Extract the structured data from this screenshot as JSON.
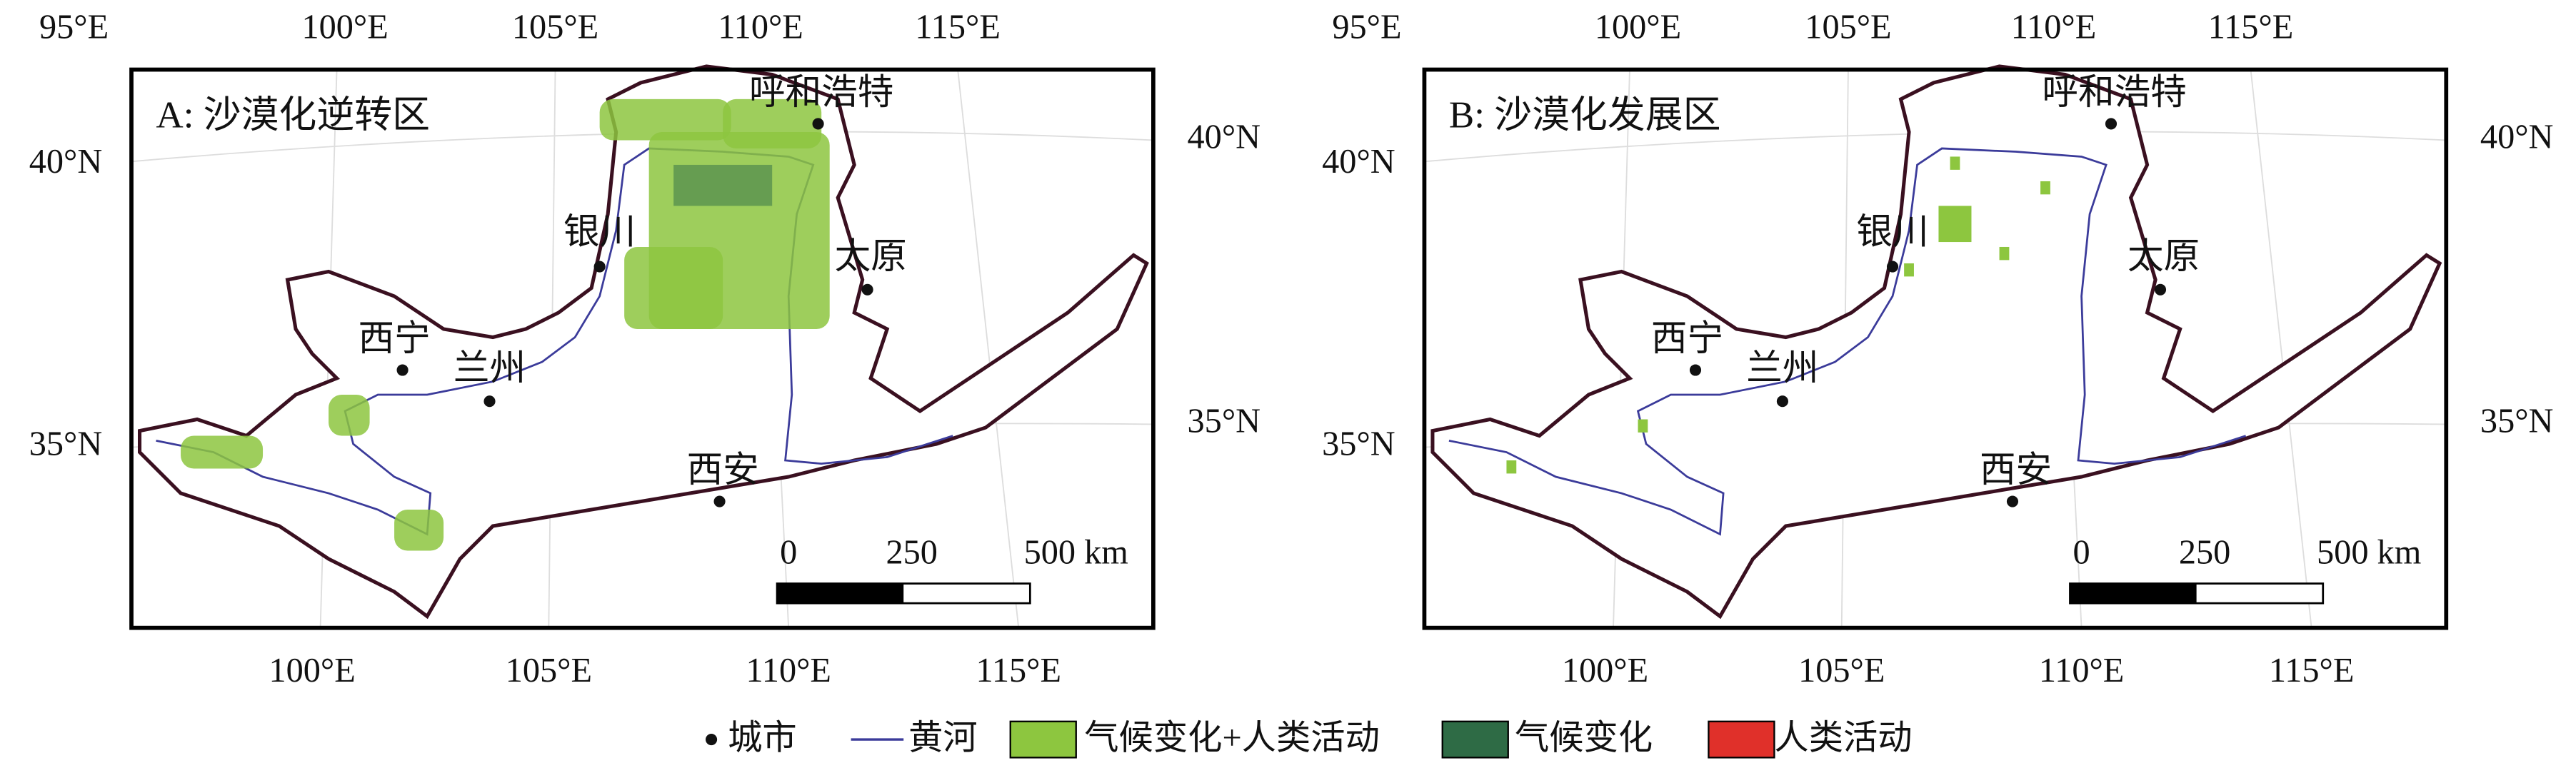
{
  "panels": [
    {
      "title": "A: 沙漠化逆转区",
      "top_labels": [
        "95°E",
        "100°E",
        "105°E",
        "110°E",
        "115°E"
      ],
      "bottom_labels": [
        "100°E",
        "105°E",
        "110°E",
        "115°E"
      ],
      "left_labels": [
        "40°N",
        "35°N"
      ],
      "right_labels": [
        "40°N",
        "35°N"
      ],
      "cities": [
        "呼和浩特",
        "银川",
        "太原",
        "西宁",
        "兰州",
        "西安"
      ],
      "scale_labels": [
        "0",
        "250",
        "500 km"
      ]
    },
    {
      "title": "B: 沙漠化发展区",
      "top_labels": [
        "95°E",
        "100°E",
        "105°E",
        "110°E",
        "115°E"
      ],
      "bottom_labels": [
        "100°E",
        "105°E",
        "110°E",
        "115°E"
      ],
      "left_labels": [
        "40°N",
        "35°N"
      ],
      "right_labels": [
        "40°N",
        "35°N"
      ],
      "cities": [
        "呼和浩特",
        "银川",
        "太原",
        "西宁",
        "兰州",
        "西安"
      ],
      "scale_labels": [
        "0",
        "250",
        "500 km"
      ]
    }
  ],
  "legend": [
    "城市",
    "黄河",
    "气候变化+人类活动",
    "气候变化",
    "人类活动"
  ]
}
